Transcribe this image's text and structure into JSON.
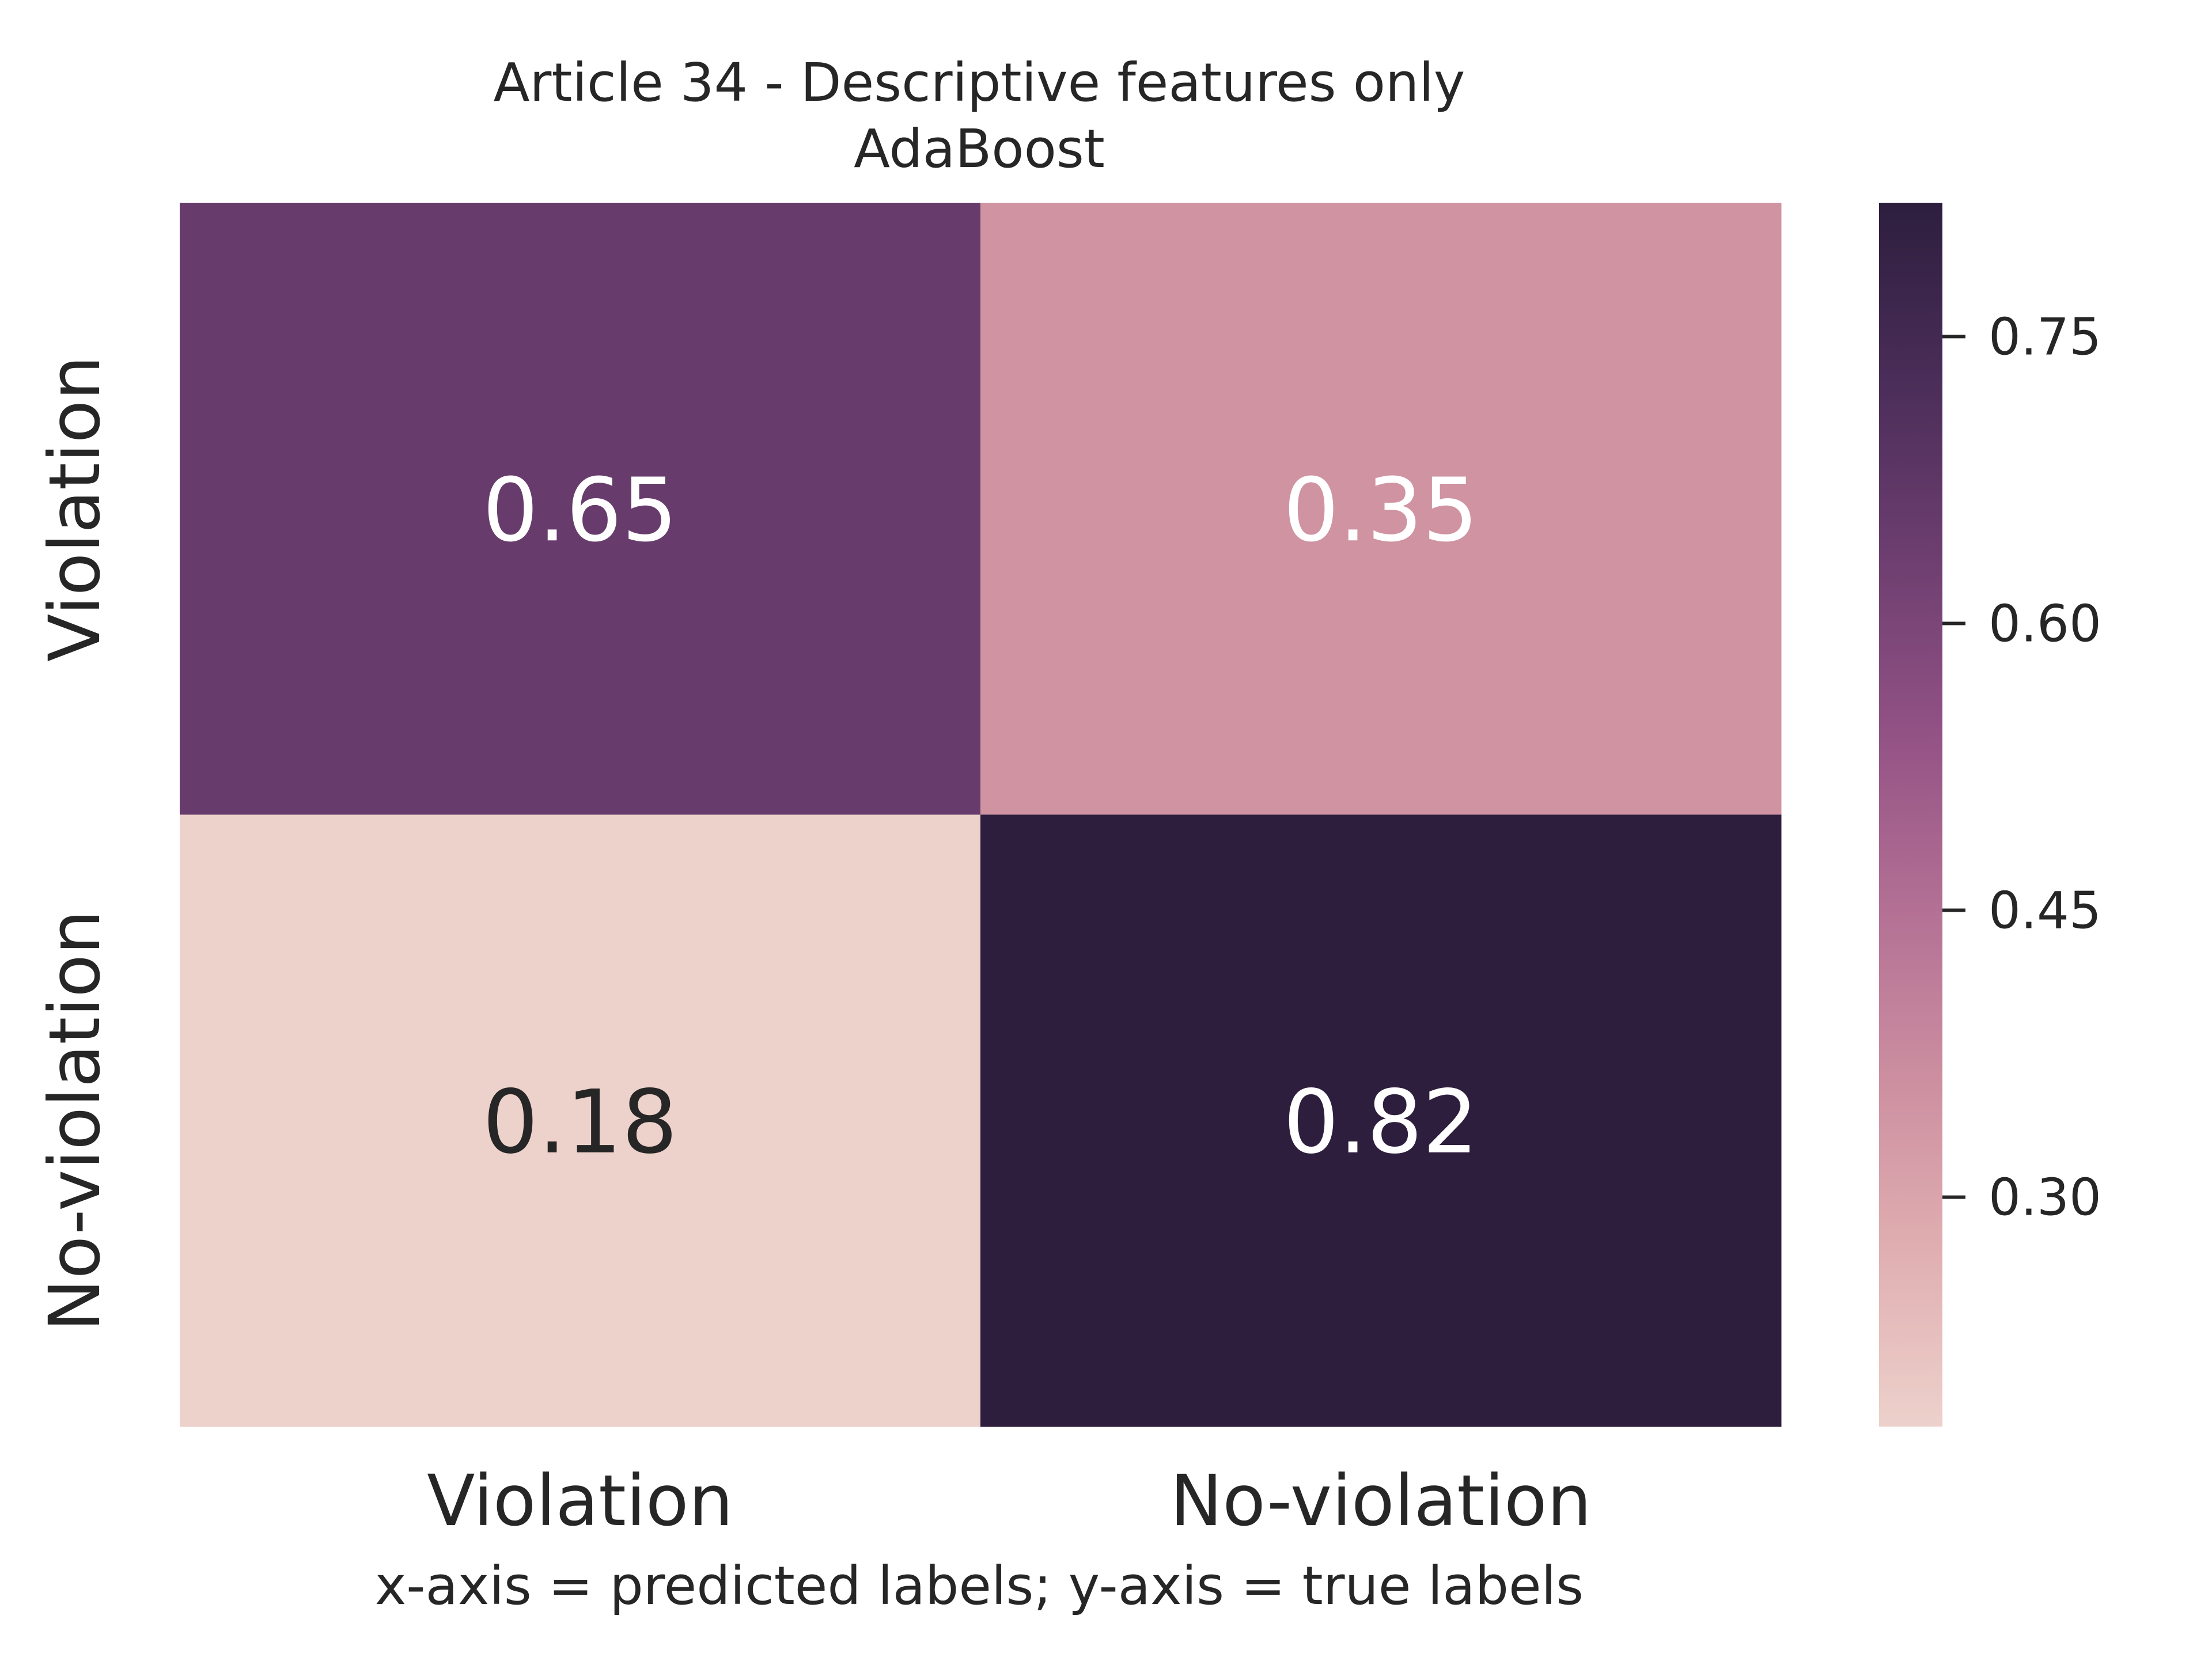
{
  "chart_data": {
    "type": "heatmap",
    "title": "Article 34 - Descriptive features only",
    "subtitle": "AdaBoost",
    "xlabel": "x-axis = predicted labels; y-axis = true labels",
    "ylabel": "",
    "x_categories": [
      "Violation",
      "No-violation"
    ],
    "y_categories": [
      "Violation",
      "No-violation"
    ],
    "values": [
      [
        0.65,
        0.35
      ],
      [
        0.18,
        0.82
      ]
    ],
    "cell_labels": [
      [
        "0.65",
        "0.35"
      ],
      [
        "0.18",
        "0.82"
      ]
    ],
    "colorbar": {
      "range": [
        0.18,
        0.82
      ],
      "ticks": [
        0.3,
        0.45,
        0.6,
        0.75
      ],
      "tick_labels": [
        "0.30",
        "0.45",
        "0.60",
        "0.75"
      ],
      "colors": [
        "#edd1cb",
        "#e0afb1",
        "#cc8ea0",
        "#b26f94",
        "#915184",
        "#6c3e6f",
        "#4a2d58",
        "#2d1e3e"
      ]
    },
    "annotation_colors": {
      "light": "#ffffff",
      "dark": "#262626"
    },
    "grid": false
  }
}
